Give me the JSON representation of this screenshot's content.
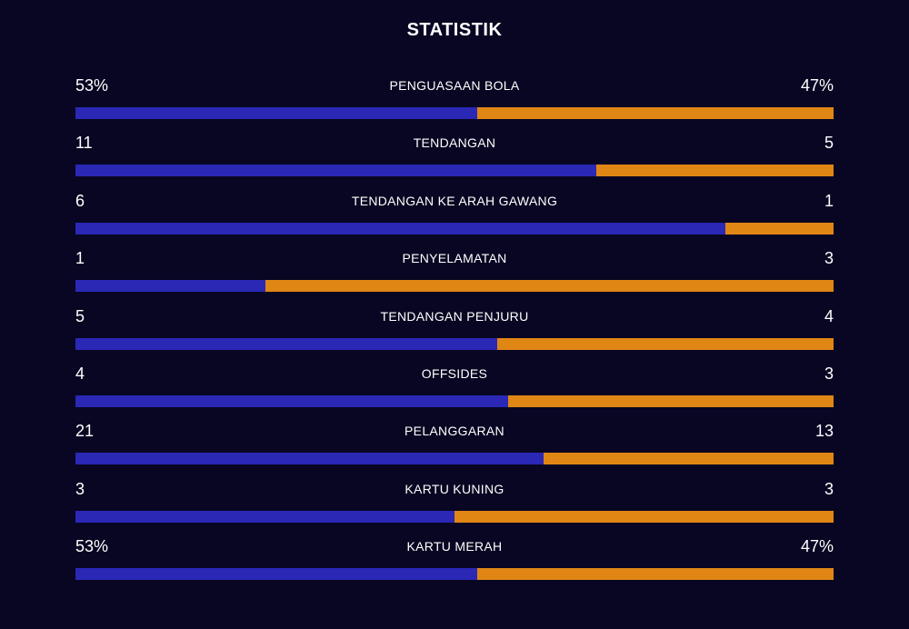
{
  "title": "STATISTIK",
  "colors": {
    "home": "#2a28b5",
    "away": "#e08614",
    "background": "#080622"
  },
  "stats": [
    {
      "label": "PENGUASAAN BOLA",
      "home": "53%",
      "away": "47%",
      "home_share": 0.53
    },
    {
      "label": "TENDANGAN",
      "home": "11",
      "away": "5",
      "home_share": 0.6875
    },
    {
      "label": "TENDANGAN KE ARAH GAWANG",
      "home": "6",
      "away": "1",
      "home_share": 0.857
    },
    {
      "label": "PENYELAMATAN",
      "home": "1",
      "away": "3",
      "home_share": 0.25
    },
    {
      "label": "TENDANGAN PENJURU",
      "home": "5",
      "away": "4",
      "home_share": 0.556
    },
    {
      "label": "OFFSIDES",
      "home": "4",
      "away": "3",
      "home_share": 0.571
    },
    {
      "label": "PELANGGARAN",
      "home": "21",
      "away": "13",
      "home_share": 0.618
    },
    {
      "label": "KARTU KUNING",
      "home": "3",
      "away": "3",
      "home_share": 0.5
    },
    {
      "label": "KARTU MERAH",
      "home": "53%",
      "away": "47%",
      "home_share": 0.53
    }
  ]
}
